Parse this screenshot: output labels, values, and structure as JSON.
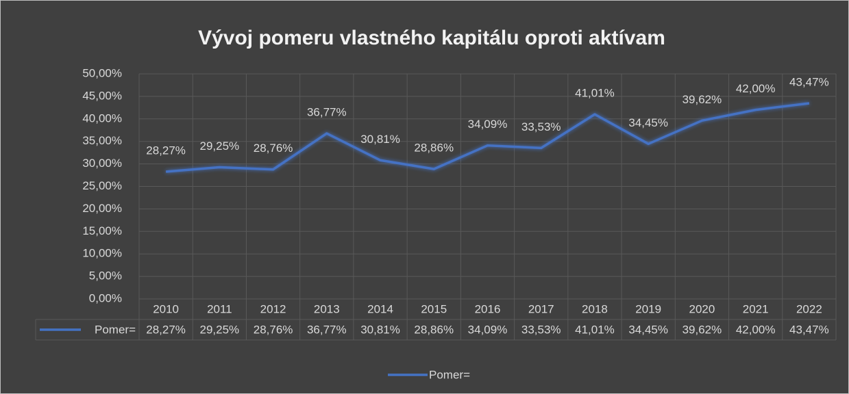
{
  "chart_data": {
    "type": "line",
    "title": "Vývoj pomeru vlastného kapitálu oproti aktívam",
    "categories": [
      "2010",
      "2011",
      "2012",
      "2013",
      "2014",
      "2015",
      "2016",
      "2017",
      "2018",
      "2019",
      "2020",
      "2021",
      "2022"
    ],
    "series": [
      {
        "name": "Pomer=",
        "color": "#4472c4",
        "values": [
          28.27,
          29.25,
          28.76,
          36.77,
          30.81,
          28.86,
          34.09,
          33.53,
          41.01,
          34.45,
          39.62,
          42.0,
          43.47
        ],
        "value_labels": [
          "28,27%",
          "29,25%",
          "28,76%",
          "36,77%",
          "30,81%",
          "28,86%",
          "34,09%",
          "33,53%",
          "41,01%",
          "34,45%",
          "39,62%",
          "42,00%",
          "43,47%"
        ]
      }
    ],
    "ylim": [
      0,
      50
    ],
    "yticks": [
      {
        "value": 0,
        "label": "0,00%"
      },
      {
        "value": 5,
        "label": "5,00%"
      },
      {
        "value": 10,
        "label": "10,00%"
      },
      {
        "value": 15,
        "label": "15,00%"
      },
      {
        "value": 20,
        "label": "20,00%"
      },
      {
        "value": 25,
        "label": "25,00%"
      },
      {
        "value": 30,
        "label": "30,00%"
      },
      {
        "value": 35,
        "label": "35,00%"
      },
      {
        "value": 40,
        "label": "40,00%"
      },
      {
        "value": 45,
        "label": "45,00%"
      },
      {
        "value": 50,
        "label": "50,00%"
      }
    ],
    "grid": true,
    "legend": "bottom"
  }
}
